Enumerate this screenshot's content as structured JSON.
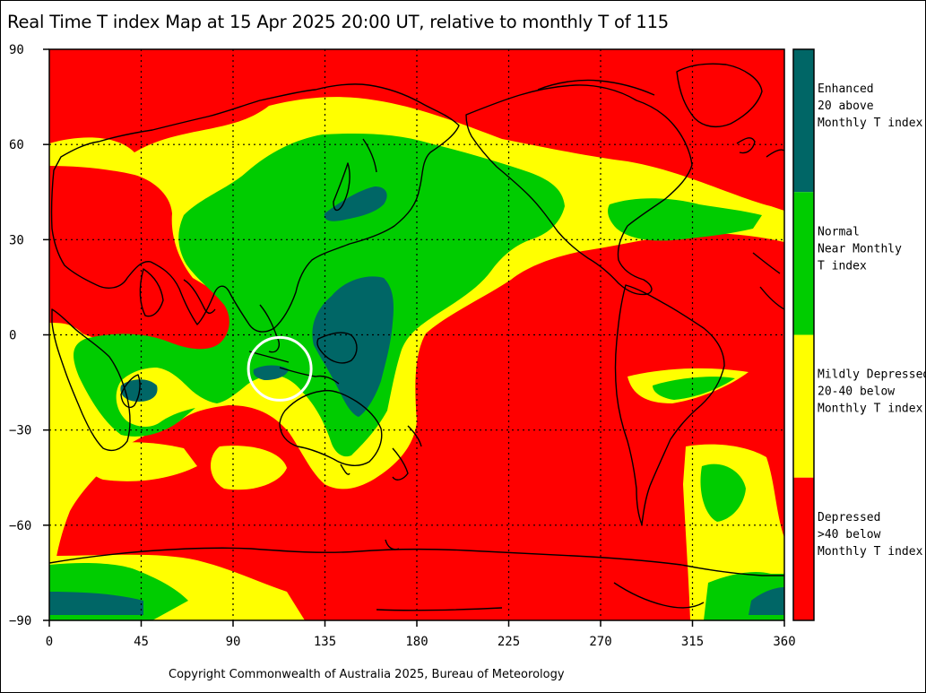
{
  "title": "Real Time T index Map at 15 Apr 2025 20:00 UT, relative to monthly T of 115",
  "copyright": "Copyright Commonwealth of Australia 2025, Bureau of Meteorology",
  "colors": {
    "depressed": "#ff0000",
    "mildly_depressed": "#ffff00",
    "normal": "#00cc00",
    "enhanced": "#006666",
    "coast": "#000000",
    "grid": "#000000",
    "highlight_circle": "#ffffff"
  },
  "x_axis": {
    "min": 0,
    "max": 360,
    "ticks": [
      "0",
      "45",
      "90",
      "135",
      "180",
      "225",
      "270",
      "315",
      "360"
    ]
  },
  "y_axis": {
    "min": -90,
    "max": 90,
    "ticks": [
      "90",
      "60",
      "30",
      "0",
      "-30",
      "-60",
      "-90"
    ]
  },
  "legend": [
    {
      "lines": [
        "Enhanced",
        "20 above",
        "Monthly T index"
      ],
      "color": "#006666"
    },
    {
      "lines": [
        "Normal",
        "Near Monthly",
        "T index"
      ],
      "color": "#00cc00"
    },
    {
      "lines": [
        "Mildly Depressed",
        "20-40 below",
        "Monthly T index"
      ],
      "color": "#ffff00"
    },
    {
      "lines": [
        "Depressed",
        ">40 below",
        "Monthly T index"
      ],
      "color": "#ff0000"
    }
  ],
  "highlight": {
    "lon": 112,
    "lat": -11
  }
}
